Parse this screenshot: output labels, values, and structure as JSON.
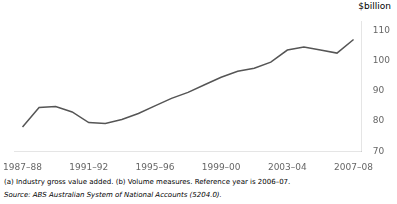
{
  "chart_data": {
    "type": "line",
    "ylabel": "$billion",
    "annotations": [
      "(a)  Industry gross value added.  (b)  Volume measures.  Reference year is 2006–07.",
      "Source:  ABS Australian System of National Accounts (5204.0)."
    ],
    "categories": [
      "1987–88",
      null,
      null,
      null,
      "1991–92",
      null,
      null,
      null,
      "1995–96",
      null,
      null,
      null,
      "1999–00",
      null,
      null,
      null,
      "2003–04",
      null,
      null,
      null,
      "2007–08"
    ],
    "values": [
      78.0,
      84.5,
      84.8,
      83.0,
      79.5,
      79.2,
      80.5,
      82.5,
      85.0,
      87.5,
      89.5,
      92.0,
      94.5,
      96.5,
      97.5,
      99.5,
      103.5,
      104.5,
      103.5,
      102.5,
      107.0
    ],
    "color": "#555555",
    "ylim": [
      70,
      113
    ],
    "yticks": [
      70,
      80,
      90,
      100,
      110
    ],
    "grid": false
  }
}
